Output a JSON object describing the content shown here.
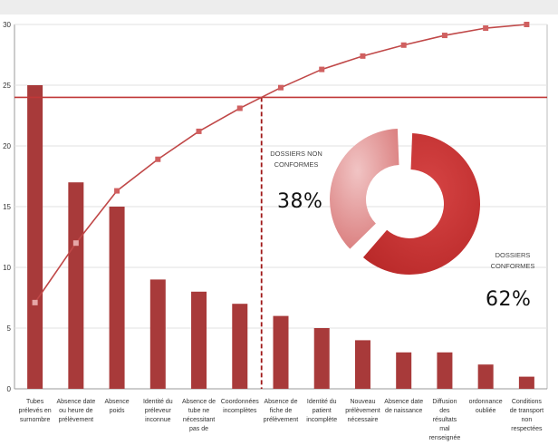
{
  "chart_data": {
    "type": "bar",
    "categories": [
      "Tubes prélevés en surnombre",
      "Absence date ou heure de prélèvement",
      "Absence poids",
      "Identité du préleveur inconnue",
      "Absence de tube ne nécessitant pas de",
      "Coordonnées incomplètes",
      "Absence de fiche de prélèvement",
      "Identité du patient incomplète",
      "Nouveau prélèvement nécessaire",
      "Absence date de naissance",
      "Diffusion des résultats mal renseignée",
      "ordonnance oubliée",
      "Conditions de transport non respectées"
    ],
    "series": [
      {
        "values": [
          25,
          17,
          15,
          9,
          8,
          7,
          6,
          5,
          4,
          3,
          3,
          2,
          1
        ]
      },
      {
        "values": [
          7.1,
          12.0,
          16.3,
          18.9,
          21.2,
          23.1,
          24.8,
          26.3,
          27.4,
          28.3,
          29.1,
          29.7,
          30.0
        ]
      }
    ],
    "threshold": 24,
    "ylim": [
      0,
      30
    ],
    "yticks": [
      0,
      5,
      10,
      15,
      20,
      25,
      30
    ],
    "grid": true,
    "colors": {
      "bars": "#a83a3a",
      "line": "#c04848",
      "threshold": "#c03838"
    },
    "donut": {
      "type": "pie",
      "labels": [
        "DOSSIERS NON CONFORMES",
        "DOSSIERS CONFORMES"
      ],
      "values": [
        38,
        62
      ],
      "percent_labels": [
        "38%",
        "62%"
      ],
      "colors": [
        "#d87878",
        "#b82828"
      ]
    }
  }
}
